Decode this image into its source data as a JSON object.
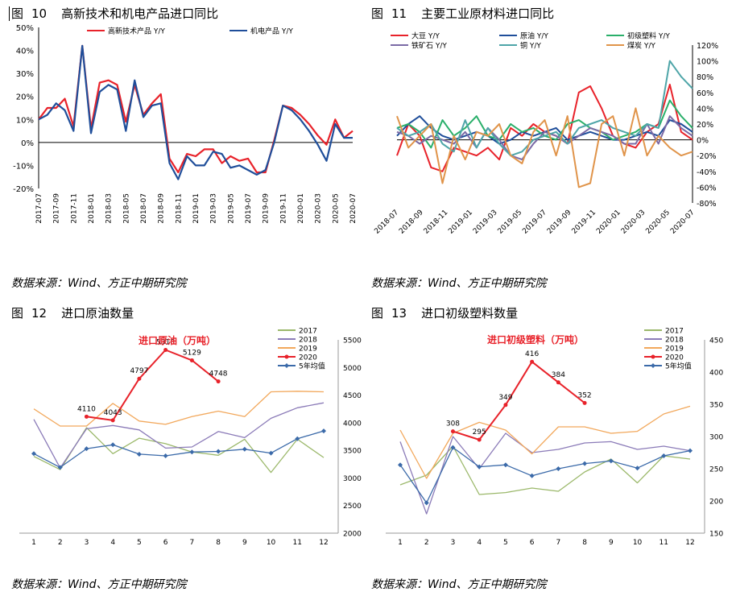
{
  "colors": {
    "red": "#e8222a",
    "blue": "#1f4e9a",
    "green": "#2aaf6a",
    "purple": "#7b6aa6",
    "teal": "#4ea5a8",
    "orange": "#e0944a",
    "olive": "#9bb86a",
    "lavender": "#8b7bb8",
    "lightorange": "#f2a85c",
    "steel": "#3b6aa9",
    "grid": "#d9d9d9",
    "axis": "#999999"
  },
  "fig10": {
    "label": "图",
    "number": "10",
    "title": "高新技术和机电产品进口同比",
    "source": "数据来源：Wind、方正中期研究院"
  },
  "fig11": {
    "label": "图",
    "number": "11",
    "title": "主要工业原材料进口同比",
    "source": "数据来源：Wind、方正中期研究院"
  },
  "fig12": {
    "label": "图",
    "number": "12",
    "title": "进口原油数量",
    "source": "数据来源：Wind、方正中期研究院"
  },
  "fig13": {
    "label": "图",
    "number": "13",
    "title": "进口初级塑料数量",
    "source": "数据来源：Wind、方正中期研究院"
  },
  "chart_data": [
    {
      "id": "fig10",
      "type": "line",
      "title": "高新技术和机电产品进口同比",
      "yticks": [
        "50%",
        "40%",
        "30%",
        "20%",
        "10%",
        "0%",
        "-10%",
        "-20%"
      ],
      "ylim": [
        -20,
        50
      ],
      "xtick_labels": [
        "2017-07",
        "2017-09",
        "2017-11",
        "2018-01",
        "2018-03",
        "2018-05",
        "2018-07",
        "2018-09",
        "2018-11",
        "2019-01",
        "2019-03",
        "2019-05",
        "2019-07",
        "2019-09",
        "2019-11",
        "2020-01",
        "2020-03",
        "2020-05",
        "2020-07"
      ],
      "legend": [
        "高新技术产品 Y/Y",
        "机电产品 Y/Y"
      ],
      "series": [
        {
          "name": "高新技术产品 Y/Y",
          "color": "red",
          "values": [
            10,
            15,
            15,
            19,
            7,
            42,
            6,
            26,
            27,
            25,
            9,
            25,
            12,
            17,
            21,
            -7,
            -13,
            -5,
            -6,
            -3,
            -3,
            -9,
            -6,
            -8,
            -7,
            -13,
            -13,
            1,
            16,
            15,
            12,
            8,
            3,
            -1,
            10,
            2,
            5
          ]
        },
        {
          "name": "机电产品 Y/Y",
          "color": "blue",
          "values": [
            10,
            12,
            17,
            14,
            5,
            42,
            4,
            22,
            25,
            23,
            5,
            27,
            11,
            16,
            17,
            -9,
            -16,
            -6,
            -10,
            -10,
            -4,
            -5,
            -11,
            -10,
            -12,
            -14,
            -12,
            0,
            16,
            14,
            10,
            5,
            -1,
            -8,
            8,
            2,
            2
          ]
        }
      ]
    },
    {
      "id": "fig11",
      "type": "line",
      "title": "主要工业原材料进口同比",
      "yticks": [
        "120%",
        "100%",
        "80%",
        "60%",
        "40%",
        "20%",
        "0%",
        "-20%",
        "-40%",
        "-60%",
        "-80%"
      ],
      "ylim": [
        -80,
        120
      ],
      "xtick_labels": [
        "2018-07",
        "2018-09",
        "2018-11",
        "2019-01",
        "2019-03",
        "2019-05",
        "2019-07",
        "2019-09",
        "2019-11",
        "2020-01",
        "2020-03",
        "2020-05",
        "2020-07"
      ],
      "legend": [
        "大豆 Y/Y",
        "原油 Y/Y",
        "初级塑料 Y/Y",
        "铁矿石 Y/Y",
        "铜 Y/Y",
        "煤炭 Y/Y"
      ],
      "series": [
        {
          "name": "大豆 Y/Y",
          "color": "red",
          "values": [
            -20,
            20,
            5,
            -35,
            -40,
            -10,
            -15,
            -20,
            -10,
            -25,
            15,
            5,
            20,
            10,
            5,
            -5,
            60,
            68,
            40,
            5,
            -5,
            -10,
            10,
            20,
            70,
            10,
            0
          ]
        },
        {
          "name": "原油 Y/Y",
          "color": "blue",
          "values": [
            5,
            20,
            30,
            15,
            5,
            0,
            5,
            10,
            5,
            -5,
            0,
            10,
            5,
            10,
            15,
            0,
            5,
            10,
            5,
            0,
            0,
            5,
            10,
            5,
            25,
            20,
            10
          ]
        },
        {
          "name": "初级塑料 Y/Y",
          "color": "green",
          "values": [
            15,
            20,
            10,
            -10,
            25,
            5,
            15,
            30,
            5,
            0,
            20,
            10,
            15,
            5,
            0,
            20,
            25,
            15,
            10,
            0,
            5,
            10,
            20,
            15,
            50,
            30,
            15
          ]
        },
        {
          "name": "铁矿石 Y/Y",
          "color": "purple",
          "values": [
            10,
            5,
            -5,
            5,
            0,
            -5,
            10,
            -10,
            15,
            0,
            -20,
            -25,
            -5,
            10,
            5,
            -5,
            5,
            15,
            10,
            5,
            -5,
            -5,
            20,
            -5,
            30,
            15,
            5
          ]
        },
        {
          "name": "铜 Y/Y",
          "color": "teal",
          "values": [
            15,
            5,
            10,
            20,
            -5,
            -15,
            25,
            -10,
            15,
            -5,
            -20,
            -15,
            0,
            5,
            10,
            -5,
            15,
            20,
            25,
            15,
            10,
            5,
            20,
            15,
            100,
            80,
            65
          ]
        },
        {
          "name": "煤炭 Y/Y",
          "color": "orange",
          "values": [
            30,
            -10,
            5,
            20,
            -55,
            5,
            -25,
            10,
            5,
            20,
            -20,
            -30,
            10,
            25,
            -20,
            30,
            -60,
            -55,
            20,
            30,
            -20,
            40,
            -20,
            5,
            -10,
            -20,
            -15
          ]
        }
      ]
    },
    {
      "id": "fig12",
      "type": "line",
      "title": "进口原油数量",
      "inner_title": "进口原油（万吨）",
      "x": [
        1,
        2,
        3,
        4,
        5,
        6,
        7,
        8,
        9,
        10,
        11,
        12
      ],
      "yticks": [
        "5500",
        "5000",
        "4500",
        "4000",
        "3500",
        "3000",
        "2500",
        "2000"
      ],
      "ylim": [
        2000,
        5500
      ],
      "legend": [
        "2017",
        "2018",
        "2019",
        "2020",
        "5年均值"
      ],
      "series": [
        {
          "name": "2017",
          "color": "olive",
          "values": [
            3390,
            3150,
            3910,
            3440,
            3720,
            3620,
            3470,
            3410,
            3700,
            3100,
            3700,
            3370
          ]
        },
        {
          "name": "2018",
          "color": "lavender",
          "values": [
            4060,
            3180,
            3890,
            3950,
            3870,
            3540,
            3560,
            3840,
            3730,
            4080,
            4270,
            4360
          ]
        },
        {
          "name": "2019",
          "color": "lightorange",
          "values": [
            4250,
            3940,
            3940,
            4350,
            4030,
            3970,
            4110,
            4210,
            4110,
            4560,
            4570,
            4560
          ]
        },
        {
          "name": "2020",
          "color": "red",
          "values": [
            null,
            null,
            4110,
            4043,
            4797,
            5318,
            5129,
            4748,
            null,
            null,
            null,
            null
          ]
        },
        {
          "name": "5年均值",
          "color": "steel",
          "values": [
            3440,
            3190,
            3530,
            3600,
            3430,
            3400,
            3470,
            3480,
            3520,
            3450,
            3710,
            3850
          ]
        }
      ],
      "data_labels": [
        "4110",
        "4043",
        "4797",
        "5318",
        "5129",
        "4748"
      ]
    },
    {
      "id": "fig13",
      "type": "line",
      "title": "进口初级塑料数量",
      "inner_title": "进口初级塑料（万吨）",
      "x": [
        1,
        2,
        3,
        4,
        5,
        6,
        7,
        8,
        9,
        10,
        11,
        12
      ],
      "yticks": [
        "450",
        "400",
        "350",
        "300",
        "250",
        "200",
        "150"
      ],
      "ylim": [
        150,
        450
      ],
      "legend": [
        "2017",
        "2018",
        "2019",
        "2020",
        "5年均值"
      ],
      "series": [
        {
          "name": "2017",
          "color": "olive",
          "values": [
            225,
            240,
            285,
            210,
            213,
            220,
            215,
            245,
            265,
            228,
            270,
            265
          ]
        },
        {
          "name": "2018",
          "color": "lavender",
          "values": [
            292,
            180,
            300,
            250,
            305,
            275,
            280,
            290,
            292,
            280,
            285,
            278
          ]
        },
        {
          "name": "2019",
          "color": "lightorange",
          "values": [
            310,
            235,
            305,
            322,
            310,
            273,
            315,
            315,
            305,
            308,
            335,
            347
          ]
        },
        {
          "name": "2020",
          "color": "red",
          "values": [
            null,
            null,
            308,
            295,
            349,
            416,
            384,
            352,
            null,
            null,
            null,
            null
          ]
        },
        {
          "name": "5年均值",
          "color": "steel",
          "values": [
            256,
            197,
            283,
            253,
            256,
            239,
            250,
            258,
            262,
            251,
            270,
            278
          ]
        }
      ],
      "data_labels": [
        "308",
        "295",
        "349",
        "416",
        "384",
        "352"
      ]
    }
  ]
}
